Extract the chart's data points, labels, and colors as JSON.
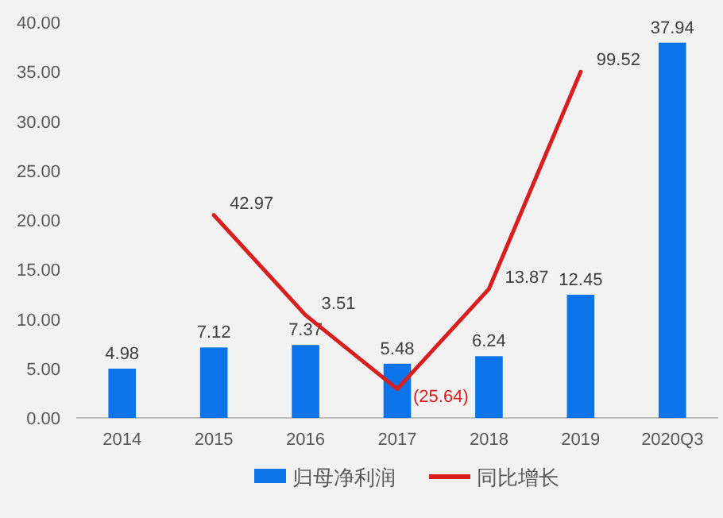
{
  "chart_data": {
    "type": "bar",
    "categories": [
      "2014",
      "2015",
      "2016",
      "2017",
      "2018",
      "2019",
      "2020Q3"
    ],
    "series": [
      {
        "name": "归母净利润",
        "color": "#0a74e8",
        "values": [
          4.98,
          7.12,
          7.37,
          5.48,
          6.24,
          12.45,
          37.94
        ],
        "value_labels": [
          "4.98",
          "7.12",
          "7.37",
          "5.48",
          "6.24",
          "12.45",
          "37.94"
        ]
      },
      {
        "name": "同比增长",
        "type": "line",
        "axis": "y2",
        "color": "#d81e1e",
        "values": [
          null,
          42.97,
          3.51,
          -25.64,
          13.87,
          99.52,
          null
        ],
        "value_labels": [
          null,
          "42.97",
          "3.51",
          "(25.64)",
          "13.87",
          "99.52",
          null
        ]
      }
    ],
    "ylim": [
      0,
      40
    ],
    "yticks": [
      {
        "value": 0,
        "label": "0.00"
      },
      {
        "value": 5,
        "label": "5.00"
      },
      {
        "value": 10,
        "label": "10.00"
      },
      {
        "value": 15,
        "label": "15.00"
      },
      {
        "value": 20,
        "label": "20.00"
      },
      {
        "value": 25,
        "label": "25.00"
      },
      {
        "value": 30,
        "label": "30.00"
      },
      {
        "value": 35,
        "label": "35.00"
      },
      {
        "value": 40,
        "label": "40.00"
      }
    ],
    "grid": false,
    "legend": "bottom",
    "marker": "none",
    "line_style": "solid"
  }
}
